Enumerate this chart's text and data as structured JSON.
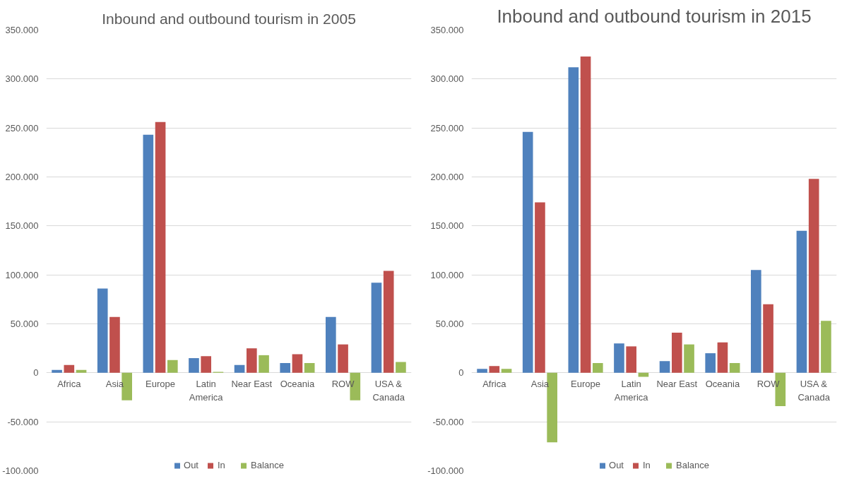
{
  "chart_data": [
    {
      "type": "bar",
      "title": "Inbound and outbound tourism in 2005",
      "categories": [
        "Africa",
        "Asia",
        "Europe",
        "Latin America",
        "Near East",
        "Oceania",
        "ROW",
        "USA & Canada"
      ],
      "series": [
        {
          "name": "Out",
          "color": "#4f81bd",
          "values": [
            3000,
            86000,
            243000,
            15000,
            8000,
            10000,
            57000,
            92000
          ]
        },
        {
          "name": "In",
          "color": "#c0504d",
          "values": [
            8000,
            57000,
            256000,
            17000,
            25000,
            19000,
            29000,
            104000
          ]
        },
        {
          "name": "Balance",
          "color": "#9bbb59",
          "values": [
            3000,
            -28000,
            13000,
            1000,
            18000,
            10000,
            -28000,
            11000
          ]
        }
      ],
      "ylim": [
        -100000,
        350000
      ],
      "yticks": [
        {
          "value": -100000,
          "label": "-100.000"
        },
        {
          "value": -50000,
          "label": "-50.000"
        },
        0,
        {
          "value": 50000,
          "label": "50.000"
        },
        {
          "value": 100000,
          "label": "100.000"
        },
        {
          "value": 150000,
          "label": "150.000"
        },
        {
          "value": 200000,
          "label": "200.000"
        },
        {
          "value": 250000,
          "label": "250.000"
        },
        {
          "value": 300000,
          "label": "300.000"
        },
        {
          "value": 350000,
          "label": "350.000"
        }
      ],
      "grid": "y",
      "legend": "bottom"
    },
    {
      "type": "bar",
      "title": "Inbound and outbound tourism in 2015",
      "categories": [
        "Africa",
        "Asia",
        "Europe",
        "Latin America",
        "Near East",
        "Oceania",
        "ROW",
        "USA & Canada"
      ],
      "series": [
        {
          "name": "Out",
          "color": "#4f81bd",
          "values": [
            4000,
            246000,
            312000,
            30000,
            12000,
            20000,
            105000,
            145000
          ]
        },
        {
          "name": "In",
          "color": "#c0504d",
          "values": [
            7000,
            174000,
            323000,
            27000,
            41000,
            31000,
            70000,
            198000
          ]
        },
        {
          "name": "Balance",
          "color": "#9bbb59",
          "values": [
            4000,
            -71000,
            10000,
            -4000,
            29000,
            10000,
            -34000,
            53000
          ]
        }
      ],
      "ylim": [
        -100000,
        350000
      ],
      "yticks": [
        {
          "value": -100000,
          "label": "-100.000"
        },
        {
          "value": -50000,
          "label": "-50.000"
        },
        0,
        {
          "value": 50000,
          "label": "50.000"
        },
        {
          "value": 100000,
          "label": "100.000"
        },
        {
          "value": 150000,
          "label": "150.000"
        },
        {
          "value": 200000,
          "label": "200.000"
        },
        {
          "value": 250000,
          "label": "250.000"
        },
        {
          "value": 300000,
          "label": "300.000"
        },
        {
          "value": 350000,
          "label": "350.000"
        }
      ],
      "grid": "y",
      "legend": "bottom"
    }
  ]
}
